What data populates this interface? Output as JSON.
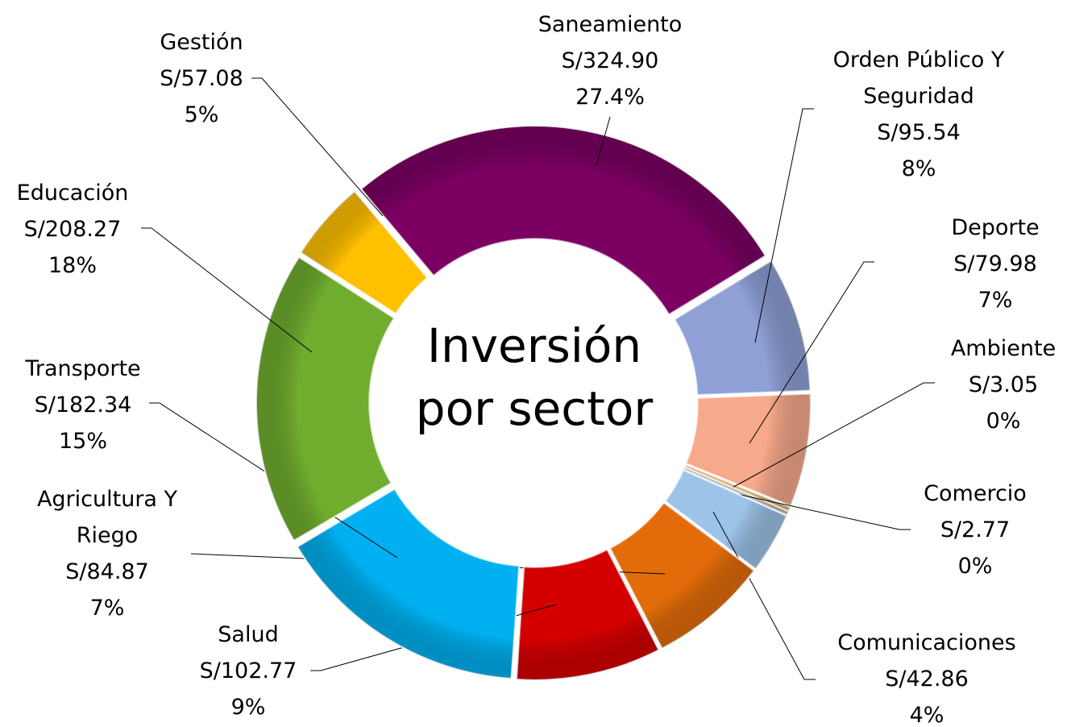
{
  "chart_data": {
    "type": "donut",
    "title": "Inversión por sector",
    "categories": [
      "Saneamiento",
      "Orden Público Y Seguridad",
      "Deporte",
      "Ambiente",
      "Comercio",
      "Comunicaciones",
      "Agricultura Y Riego",
      "Salud",
      "Transporte",
      "Educación",
      "Gestión"
    ],
    "values": [
      324.9,
      95.54,
      79.98,
      3.05,
      2.77,
      42.86,
      84.87,
      102.77,
      182.34,
      208.27,
      57.08
    ],
    "value_labels": [
      "S/324.90",
      "S/95.54",
      "S/79.98",
      "S/3.05",
      "S/2.77",
      "S/42.86",
      "S/84.87",
      "S/102.77",
      "S/182.34",
      "S/208.27",
      "S/57.08"
    ],
    "percent_labels": [
      "27.4%",
      "8%",
      "7%",
      "0%",
      "0%",
      "4%",
      "7%",
      "9%",
      "15%",
      "18%",
      "5%"
    ],
    "colors": [
      "#7b0062",
      "#8fa0d6",
      "#f7a98b",
      "#d8b26a",
      "#b9b9b9",
      "#9dc3e8",
      "#e36c0a",
      "#d40000",
      "#00b0f0",
      "#70ad2f",
      "#ffc000"
    ]
  }
}
